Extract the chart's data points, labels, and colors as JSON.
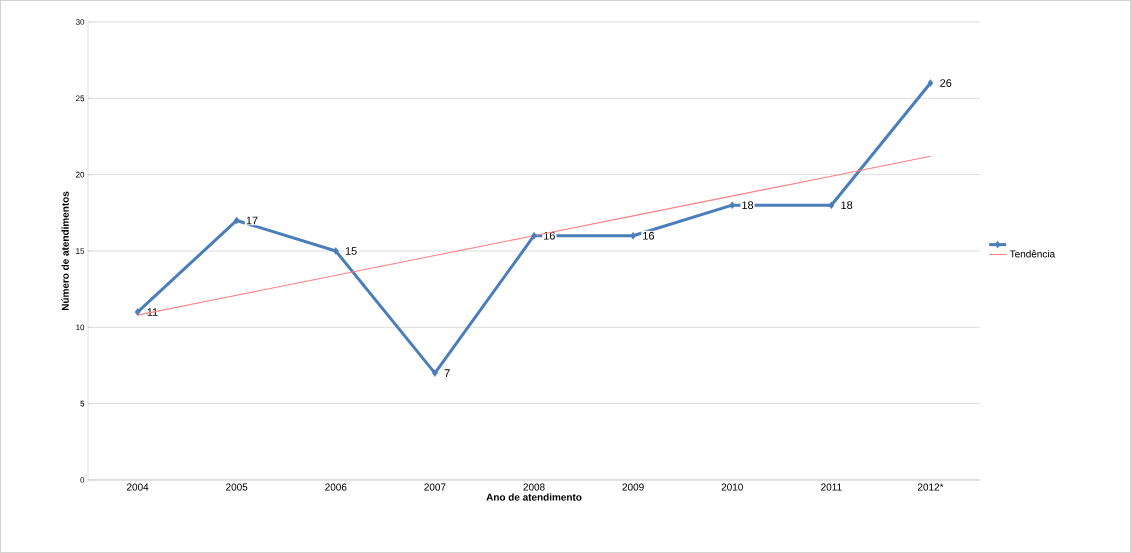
{
  "chart_data": {
    "type": "line",
    "xlabel": "Ano de atendimento",
    "ylabel": "Número de atendimentos",
    "categories": [
      "2004",
      "2005",
      "2006",
      "2007",
      "2008",
      "2009",
      "2010",
      "2011",
      "2012*"
    ],
    "series": [
      {
        "type": "line",
        "color": "#4a7ebb",
        "marker": "diamond",
        "values": [
          11,
          17,
          15,
          7,
          16,
          16,
          18,
          18,
          26
        ],
        "value_labels": [
          "11",
          "17",
          "15",
          "7",
          "16",
          "16",
          "18",
          "18",
          "26"
        ]
      },
      {
        "type": "line",
        "name": "Tendência",
        "color": "#ff7f7f",
        "marker": "none",
        "values": [
          10.8,
          12.1,
          13.4,
          14.7,
          16,
          17.3,
          18.6,
          19.9,
          21.2
        ]
      }
    ],
    "ylim": [
      0,
      30
    ],
    "yticks": [
      0,
      5,
      10,
      15,
      20,
      25,
      30
    ],
    "grid": "y",
    "legend": "right"
  }
}
